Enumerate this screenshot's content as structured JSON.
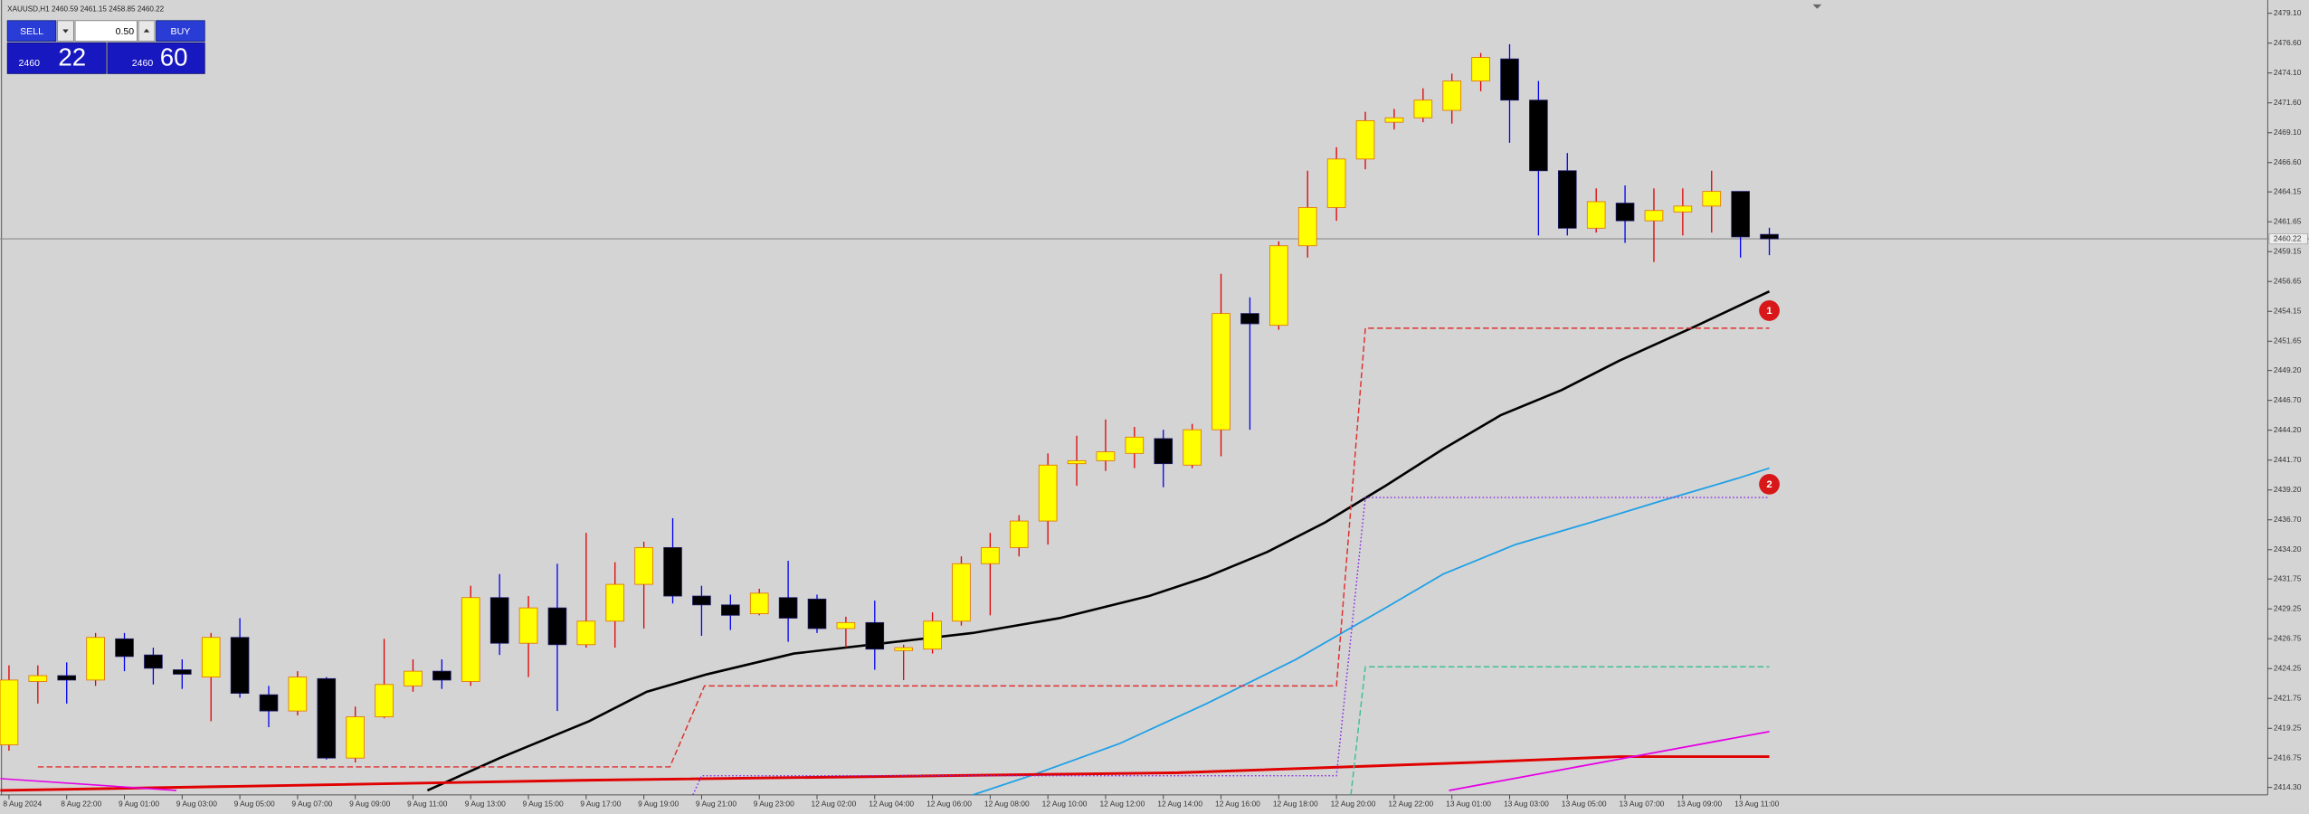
{
  "chart_data": {
    "type": "candlestick",
    "title": "XAUUSD,H1  2460.59 2461.15 2458.85 2460.22",
    "open": [
      2417.87,
      2423.17,
      2423.66,
      2423.29,
      2426.74,
      2425.39,
      2424.15,
      2423.54,
      2426.86,
      2422.06,
      2420.7,
      2423.41,
      2416.76,
      2420.21,
      2422.8,
      2424.03,
      2423.17,
      2430.19,
      2426.37,
      2429.33,
      2426.25,
      2428.22,
      2431.3,
      2434.38,
      2430.32,
      2429.58,
      2428.84,
      2430.19,
      2430.07,
      2427.6,
      2428.1,
      2425.76,
      2425.88,
      2428.22,
      2433.03,
      2434.38,
      2436.6,
      2441.4,
      2441.65,
      2442.26,
      2443.5,
      2441.28,
      2444.24,
      2453.97,
      2452.98,
      2459.64,
      2462.84,
      2466.9,
      2469.98,
      2470.35,
      2470.97,
      2473.43,
      2475.28,
      2471.83,
      2465.92,
      2461.11,
      2463.21,
      2461.73,
      2462.47,
      2462.96,
      2464.19,
      2460.59
    ],
    "high": [
      2424.52,
      2424.52,
      2424.77,
      2427.23,
      2427.23,
      2426.0,
      2425.02,
      2427.23,
      2428.47,
      2422.8,
      2424.03,
      2423.54,
      2421.07,
      2426.74,
      2425.02,
      2425.02,
      2431.18,
      2432.16,
      2430.32,
      2433.03,
      2435.61,
      2433.15,
      2434.87,
      2436.84,
      2431.18,
      2430.44,
      2430.93,
      2433.27,
      2430.44,
      2428.59,
      2429.94,
      2426.25,
      2428.96,
      2433.64,
      2435.61,
      2437.09,
      2442.26,
      2443.74,
      2445.1,
      2444.48,
      2444.24,
      2444.73,
      2457.29,
      2455.32,
      2460.01,
      2465.92,
      2467.89,
      2470.85,
      2471.09,
      2472.82,
      2474.05,
      2475.77,
      2476.51,
      2473.43,
      2467.4,
      2464.44,
      2464.69,
      2464.44,
      2464.44,
      2465.92,
      2464.19,
      2461.15
    ],
    "low": [
      2417.38,
      2421.32,
      2421.32,
      2422.8,
      2424.03,
      2422.92,
      2422.55,
      2419.84,
      2421.81,
      2419.35,
      2420.33,
      2416.64,
      2416.39,
      2420.09,
      2422.31,
      2422.55,
      2422.8,
      2425.39,
      2423.54,
      2420.7,
      2426.0,
      2426.0,
      2427.6,
      2429.7,
      2426.99,
      2427.48,
      2428.71,
      2426.49,
      2427.23,
      2426.0,
      2424.15,
      2423.29,
      2425.51,
      2427.85,
      2428.71,
      2433.64,
      2434.63,
      2439.55,
      2440.79,
      2441.03,
      2439.43,
      2441.03,
      2442.02,
      2444.24,
      2452.61,
      2458.65,
      2461.73,
      2466.04,
      2469.37,
      2469.98,
      2469.86,
      2472.57,
      2468.26,
      2460.5,
      2460.5,
      2460.74,
      2459.88,
      2458.28,
      2460.5,
      2460.74,
      2458.65,
      2458.85
    ],
    "close": [
      2423.29,
      2423.66,
      2423.29,
      2426.86,
      2425.26,
      2424.28,
      2423.78,
      2426.86,
      2422.18,
      2420.7,
      2423.54,
      2416.76,
      2420.21,
      2422.92,
      2424.03,
      2423.29,
      2430.19,
      2426.37,
      2429.33,
      2426.25,
      2428.22,
      2431.3,
      2434.38,
      2430.32,
      2429.58,
      2428.71,
      2430.56,
      2428.47,
      2427.6,
      2428.1,
      2425.88,
      2426.0,
      2428.22,
      2433.03,
      2434.38,
      2436.6,
      2441.28,
      2441.65,
      2442.39,
      2443.62,
      2441.4,
      2444.24,
      2453.97,
      2453.11,
      2459.64,
      2462.84,
      2466.9,
      2470.11,
      2470.35,
      2471.83,
      2473.43,
      2475.4,
      2471.83,
      2465.92,
      2461.11,
      2463.33,
      2461.73,
      2462.59,
      2462.96,
      2464.19,
      2460.38,
      2460.22
    ],
    "up_color": "#ffff00",
    "up_border": "#e07000",
    "down_color": "#000000",
    "down_border": "#1a1a6a",
    "wick_up_color": "#e00000",
    "wick_down_color": "#0000ee",
    "xlim": [
      -0.31,
      78.27
    ],
    "xticks": [
      {
        "value": 0,
        "label": "8 Aug 2024"
      },
      {
        "value": 2,
        "label": "8 Aug 22:00"
      },
      {
        "value": 4,
        "label": "9 Aug 01:00"
      },
      {
        "value": 6,
        "label": "9 Aug 03:00"
      },
      {
        "value": 8,
        "label": "9 Aug 05:00"
      },
      {
        "value": 10,
        "label": "9 Aug 07:00"
      },
      {
        "value": 12,
        "label": "9 Aug 09:00"
      },
      {
        "value": 14,
        "label": "9 Aug 11:00"
      },
      {
        "value": 16,
        "label": "9 Aug 13:00"
      },
      {
        "value": 18,
        "label": "9 Aug 15:00"
      },
      {
        "value": 20,
        "label": "9 Aug 17:00"
      },
      {
        "value": 22,
        "label": "9 Aug 19:00"
      },
      {
        "value": 24,
        "label": "9 Aug 21:00"
      },
      {
        "value": 26,
        "label": "9 Aug 23:00"
      },
      {
        "value": 28,
        "label": "12 Aug 02:00"
      },
      {
        "value": 30,
        "label": "12 Aug 04:00"
      },
      {
        "value": 32,
        "label": "12 Aug 06:00"
      },
      {
        "value": 34,
        "label": "12 Aug 08:00"
      },
      {
        "value": 36,
        "label": "12 Aug 10:00"
      },
      {
        "value": 38,
        "label": "12 Aug 12:00"
      },
      {
        "value": 40,
        "label": "12 Aug 14:00"
      },
      {
        "value": 42,
        "label": "12 Aug 16:00"
      },
      {
        "value": 44,
        "label": "12 Aug 18:00"
      },
      {
        "value": 46,
        "label": "12 Aug 20:00"
      },
      {
        "value": 48,
        "label": "12 Aug 22:00"
      },
      {
        "value": 50,
        "label": "13 Aug 01:00"
      },
      {
        "value": 52,
        "label": "13 Aug 03:00"
      },
      {
        "value": 54,
        "label": "13 Aug 05:00"
      },
      {
        "value": 56,
        "label": "13 Aug 07:00"
      },
      {
        "value": 58,
        "label": "13 Aug 09:00"
      },
      {
        "value": 60,
        "label": "13 Aug 11:00"
      }
    ],
    "ylim": [
      2413.68,
      2480.21
    ],
    "yticks": [
      {
        "value": 2479.1,
        "label": "2479.10"
      },
      {
        "value": 2476.6,
        "label": "2476.60"
      },
      {
        "value": 2474.1,
        "label": "2474.10"
      },
      {
        "value": 2471.6,
        "label": "2471.60"
      },
      {
        "value": 2469.1,
        "label": "2469.10"
      },
      {
        "value": 2466.6,
        "label": "2466.60"
      },
      2464.15,
      2461.65,
      2459.15,
      2456.65,
      2454.15,
      2451.65,
      {
        "value": 2449.2,
        "label": "2449.20"
      },
      {
        "value": 2446.7,
        "label": "2446.70"
      },
      {
        "value": 2444.2,
        "label": "2444.20"
      },
      {
        "value": 2441.7,
        "label": "2441.70"
      },
      {
        "value": 2439.2,
        "label": "2439.20"
      },
      {
        "value": 2436.7,
        "label": "2436.70"
      },
      {
        "value": 2434.2,
        "label": "2434.20"
      },
      2431.75,
      2429.25,
      2426.75,
      2424.25,
      2421.75,
      2419.25,
      2416.75,
      {
        "value": 2414.3,
        "label": "2414.30"
      }
    ],
    "grid": false,
    "current_price": 2460.22,
    "current_price_color": "#8c8c8c",
    "indicators": [
      {
        "color": "#000000",
        "width": 1.6,
        "dash": "solid",
        "x": [
          14.5,
          17.0,
          20.1,
          22.1,
          24.2,
          27.2,
          30.3,
          33.4,
          36.4,
          39.5,
          41.5,
          43.6,
          45.6,
          47.7,
          49.7,
          51.7,
          53.8,
          55.8,
          58.4,
          61.0
        ],
        "values": [
          2414.05,
          2416.76,
          2419.84,
          2422.31,
          2423.78,
          2425.51,
          2426.37,
          2427.23,
          2428.47,
          2430.32,
          2431.92,
          2434.01,
          2436.47,
          2439.55,
          2442.63,
          2445.47,
          2447.56,
          2450.02,
          2452.86,
          2455.82
        ]
      },
      {
        "color": "#1ea0e6",
        "width": 1.1,
        "dash": "solid",
        "x": [
          33.4,
          35.4,
          38.5,
          41.5,
          44.6,
          47.7,
          49.7,
          52.2,
          54.8,
          57.3,
          59.9,
          61.0
        ],
        "values": [
          2413.68,
          2415.28,
          2417.99,
          2421.32,
          2425.02,
          2429.33,
          2432.16,
          2434.63,
          2436.47,
          2438.32,
          2440.17,
          2441.03
        ]
      },
      {
        "color": "#e00000",
        "width": 1.8,
        "dash": "solid",
        "x": [
          -0.3,
          20.1,
          40.5,
          50.7,
          55.8,
          61.0
        ],
        "values": [
          2414.05,
          2414.91,
          2415.53,
          2416.39,
          2416.88,
          2416.88
        ]
      },
      {
        "color": "#e600e6",
        "width": 1.1,
        "dash": "solid",
        "x": [
          49.9,
          61.0
        ],
        "values": [
          2414.05,
          2418.98
        ]
      },
      {
        "color": "#e600e6",
        "width": 1.0,
        "dash": "solid",
        "x": [
          -0.3,
          5.8
        ],
        "values": [
          2415.04,
          2414.05
        ]
      },
      {
        "color": "#e03030",
        "width": 0.9,
        "dash": "dashed",
        "x": [
          1.0,
          22.9,
          24.1,
          46.0,
          47.0,
          61.0
        ],
        "values": [
          2416.02,
          2416.02,
          2422.8,
          2422.8,
          2452.74,
          2452.74
        ]
      },
      {
        "color": "#8a2be2",
        "width": 0.9,
        "dash": "dotted",
        "x": [
          23.7,
          24.0,
          46.0,
          47.0,
          61.0
        ],
        "values": [
          2413.68,
          2415.28,
          2415.28,
          2438.57,
          2438.57
        ]
      },
      {
        "color": "#40c090",
        "width": 0.9,
        "dash": "dashed",
        "x": [
          46.5,
          47.0,
          61.0
        ],
        "values": [
          2413.68,
          2424.4,
          2424.4
        ]
      }
    ],
    "annotations": [
      {
        "text": "1",
        "x": 61,
        "y": 2454.21,
        "color": "#d81818"
      },
      {
        "text": "2",
        "x": 61,
        "y": 2439.68,
        "color": "#d81818"
      }
    ]
  },
  "trade_panel": {
    "sell": "SELL",
    "buy": "BUY",
    "lot": "0.50",
    "sell_price_main": "2460",
    "sell_price_pips": "22",
    "buy_price_main": "2460",
    "buy_price_pips": "60"
  }
}
